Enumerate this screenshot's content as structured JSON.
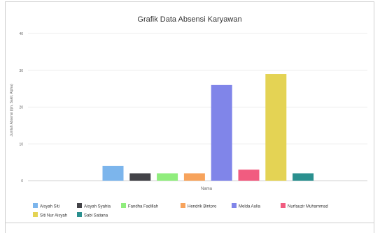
{
  "chart_data": {
    "type": "bar",
    "title": "Grafik Data Absensi Karyawan",
    "xlabel": "Nama",
    "ylabel": "Jumlah Absensi (Ijin, Sakit, Alpha)",
    "ylim": [
      0,
      40
    ],
    "yticks": [
      0,
      10,
      20,
      30,
      40
    ],
    "grid": true,
    "legend_position": "bottom",
    "series": [
      {
        "name": "Aisyah Siti",
        "value": 4,
        "color": "#7cb5ec"
      },
      {
        "name": "Aisyah Syahia",
        "value": 2,
        "color": "#434348"
      },
      {
        "name": "Fandha Fadillah",
        "value": 2,
        "color": "#90ed7d"
      },
      {
        "name": "Hendrik Bintoro",
        "value": 2,
        "color": "#f7a35c"
      },
      {
        "name": "Melda Aulia",
        "value": 26,
        "color": "#8085e9"
      },
      {
        "name": "Nurfauzir Muhammad",
        "value": 3,
        "color": "#f15c80"
      },
      {
        "name": "Siti Nur Aisyah",
        "value": 29,
        "color": "#e4d354"
      },
      {
        "name": "Sabi Satiana",
        "value": 2,
        "color": "#2b908f"
      }
    ]
  }
}
